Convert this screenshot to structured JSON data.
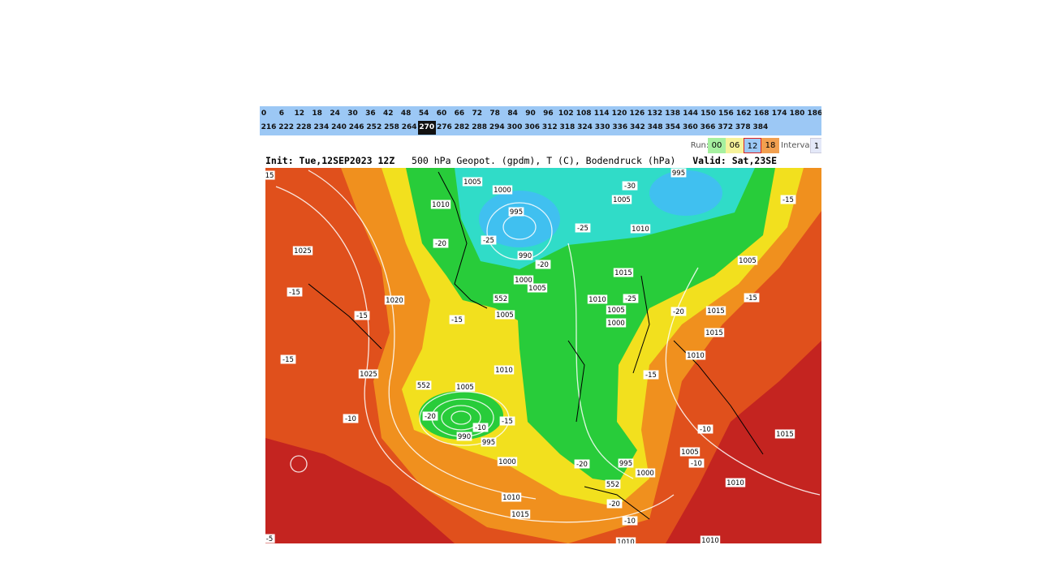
{
  "nav": {
    "row1": [
      "0",
      "6",
      "12",
      "18",
      "24",
      "30",
      "36",
      "42",
      "48",
      "54",
      "60",
      "66",
      "72",
      "78",
      "84",
      "90",
      "96",
      "102",
      "108",
      "114",
      "120",
      "126",
      "132",
      "138",
      "144",
      "150",
      "156",
      "162",
      "168",
      "174",
      "180",
      "186"
    ],
    "row2": [
      "216",
      "222",
      "228",
      "234",
      "240",
      "246",
      "252",
      "258",
      "264",
      "270",
      "276",
      "282",
      "288",
      "294",
      "300",
      "306",
      "312",
      "318",
      "324",
      "330",
      "336",
      "342",
      "348",
      "354",
      "360",
      "366",
      "372",
      "378",
      "384"
    ],
    "selected": "270"
  },
  "run": {
    "label": "Run:",
    "options": [
      "00",
      "06",
      "12",
      "18"
    ],
    "selected": "12",
    "interval_label": "Interval",
    "interval_value": "1"
  },
  "title": {
    "init": "Init: Tue,12SEP2023 12Z",
    "field": "500 hPa Geopot. (gpdm), T (C), Bodendruck (hPa)",
    "valid": "Valid: Sat,23SE"
  },
  "map": {
    "labels": [
      "15",
      "1005",
      "1000",
      "1010",
      "995",
      "990",
      "1000",
      "1005",
      "-20",
      "-25",
      "-25",
      "-20",
      "1005",
      "-30",
      "995",
      "1010",
      "1015",
      "1005",
      "-15",
      "1025",
      "-15",
      "1020",
      "-15",
      "-15",
      "1005",
      "552",
      "1010",
      "-25",
      "1005",
      "1000",
      "-20",
      "1015",
      "-15",
      "1015",
      "1010",
      "-15",
      "1025",
      "1010",
      "552",
      "1005",
      "-15",
      "-20",
      "-10",
      "-15",
      "-10",
      "990",
      "995",
      "-10",
      "1015",
      "1005",
      "-10",
      "1000",
      "-20",
      "995",
      "1000",
      "552",
      "1010",
      "1010",
      "-20",
      "1015",
      "-10",
      "1010",
      "1010",
      "-5"
    ]
  }
}
